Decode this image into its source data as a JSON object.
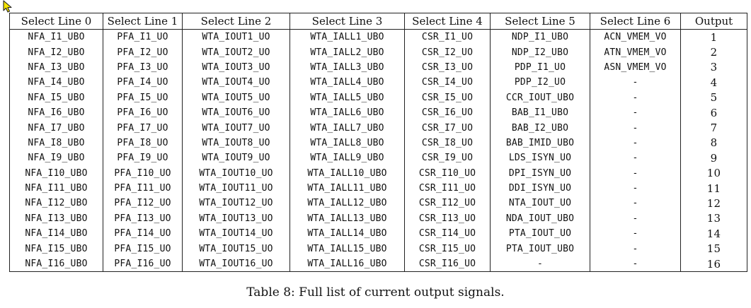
{
  "cursor": {
    "icon": "mouse-pointer-icon",
    "fill": "#f5e400",
    "stroke": "#222222"
  },
  "table": {
    "headers": [
      "Select Line 0",
      "Select Line 1",
      "Select Line 2",
      "Select Line 3",
      "Select Line 4",
      "Select Line 5",
      "Select Line 6",
      "Output"
    ],
    "rows": [
      [
        "NFA_I1_UBO",
        "PFA_I1_UO",
        "WTA_IOUT1_UO",
        "WTA_IALL1_UBO",
        "CSR_I1_UO",
        "NDP_I1_UBO",
        "ACN_VMEM_VO",
        "1"
      ],
      [
        "NFA_I2_UBO",
        "PFA_I2_UO",
        "WTA_IOUT2_UO",
        "WTA_IALL2_UBO",
        "CSR_I2_UO",
        "NDP_I2_UBO",
        "ATN_VMEM_VO",
        "2"
      ],
      [
        "NFA_I3_UBO",
        "PFA_I3_UO",
        "WTA_IOUT3_UO",
        "WTA_IALL3_UBO",
        "CSR_I3_UO",
        "PDP_I1_UO",
        "ASN_VMEM_VO",
        "3"
      ],
      [
        "NFA_I4_UBO",
        "PFA_I4_UO",
        "WTA_IOUT4_UO",
        "WTA_IALL4_UBO",
        "CSR_I4_UO",
        "PDP_I2_UO",
        "-",
        "4"
      ],
      [
        "NFA_I5_UBO",
        "PFA_I5_UO",
        "WTA_IOUT5_UO",
        "WTA_IALL5_UBO",
        "CSR_I5_UO",
        "CCR_IOUT_UBO",
        "-",
        "5"
      ],
      [
        "NFA_I6_UBO",
        "PFA_I6_UO",
        "WTA_IOUT6_UO",
        "WTA_IALL6_UBO",
        "CSR_I6_UO",
        "BAB_I1_UBO",
        "-",
        "6"
      ],
      [
        "NFA_I7_UBO",
        "PFA_I7_UO",
        "WTA_IOUT7_UO",
        "WTA_IALL7_UBO",
        "CSR_I7_UO",
        "BAB_I2_UBO",
        "-",
        "7"
      ],
      [
        "NFA_I8_UBO",
        "PFA_I8_UO",
        "WTA_IOUT8_UO",
        "WTA_IALL8_UBO",
        "CSR_I8_UO",
        "BAB_IMID_UBO",
        "-",
        "8"
      ],
      [
        "NFA_I9_UBO",
        "PFA_I9_UO",
        "WTA_IOUT9_UO",
        "WTA_IALL9_UBO",
        "CSR_I9_UO",
        "LDS_ISYN_UO",
        "-",
        "9"
      ],
      [
        "NFA_I10_UBO",
        "PFA_I10_UO",
        "WTA_IOUT10_UO",
        "WTA_IALL10_UBO",
        "CSR_I10_UO",
        "DPI_ISYN_UO",
        "-",
        "10"
      ],
      [
        "NFA_I11_UBO",
        "PFA_I11_UO",
        "WTA_IOUT11_UO",
        "WTA_IALL11_UBO",
        "CSR_I11_UO",
        "DDI_ISYN_UO",
        "-",
        "11"
      ],
      [
        "NFA_I12_UBO",
        "PFA_I12_UO",
        "WTA_IOUT12_UO",
        "WTA_IALL12_UBO",
        "CSR_I12_UO",
        "NTA_IOUT_UO",
        "-",
        "12"
      ],
      [
        "NFA_I13_UBO",
        "PFA_I13_UO",
        "WTA_IOUT13_UO",
        "WTA_IALL13_UBO",
        "CSR_I13_UO",
        "NDA_IOUT_UBO",
        "-",
        "13"
      ],
      [
        "NFA_I14_UBO",
        "PFA_I14_UO",
        "WTA_IOUT14_UO",
        "WTA_IALL14_UBO",
        "CSR_I14_UO",
        "PTA_IOUT_UO",
        "-",
        "14"
      ],
      [
        "NFA_I15_UBO",
        "PFA_I15_UO",
        "WTA_IOUT15_UO",
        "WTA_IALL15_UBO",
        "CSR_I15_UO",
        "PTA_IOUT_UBO",
        "-",
        "15"
      ],
      [
        "NFA_I16_UBO",
        "PFA_I16_UO",
        "WTA_IOUT16_UO",
        "WTA_IALL16_UBO",
        "CSR_I16_UO",
        "-",
        "-",
        "16"
      ]
    ]
  },
  "caption": "Table 8: Full list of current output signals."
}
